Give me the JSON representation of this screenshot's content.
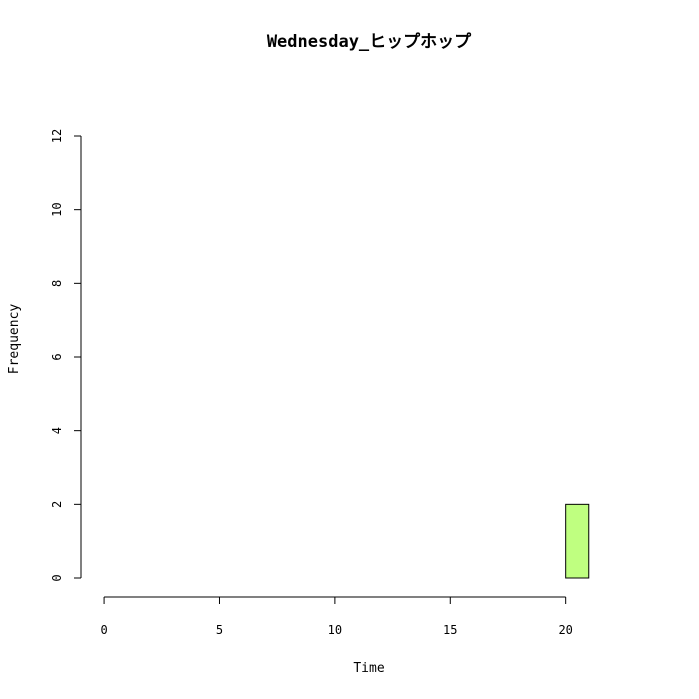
{
  "chart_data": {
    "type": "bar",
    "title": "Wednesday_ヒップホップ",
    "xlabel": "Time",
    "ylabel": "Frequency",
    "x_ticks": [
      "0",
      "5",
      "10",
      "15",
      "20"
    ],
    "y_ticks": [
      "0",
      "2",
      "4",
      "6",
      "8",
      "10",
      "12"
    ],
    "xlim": [
      -1,
      24
    ],
    "ylim": [
      0,
      12
    ],
    "bar_color": "#bfff80",
    "bins": [
      {
        "start": 0,
        "end": 1,
        "count": 0
      },
      {
        "start": 1,
        "end": 2,
        "count": 0
      },
      {
        "start": 2,
        "end": 3,
        "count": 0
      },
      {
        "start": 3,
        "end": 4,
        "count": 0
      },
      {
        "start": 4,
        "end": 5,
        "count": 0
      },
      {
        "start": 5,
        "end": 6,
        "count": 0
      },
      {
        "start": 6,
        "end": 7,
        "count": 0
      },
      {
        "start": 7,
        "end": 8,
        "count": 0
      },
      {
        "start": 8,
        "end": 9,
        "count": 0
      },
      {
        "start": 9,
        "end": 10,
        "count": 0
      },
      {
        "start": 10,
        "end": 11,
        "count": 0
      },
      {
        "start": 11,
        "end": 12,
        "count": 0
      },
      {
        "start": 12,
        "end": 13,
        "count": 0
      },
      {
        "start": 13,
        "end": 14,
        "count": 0
      },
      {
        "start": 14,
        "end": 15,
        "count": 0
      },
      {
        "start": 15,
        "end": 16,
        "count": 0
      },
      {
        "start": 16,
        "end": 17,
        "count": 0
      },
      {
        "start": 17,
        "end": 18,
        "count": 0
      },
      {
        "start": 18,
        "end": 19,
        "count": 0
      },
      {
        "start": 19,
        "end": 20,
        "count": 0
      },
      {
        "start": 20,
        "end": 21,
        "count": 2
      },
      {
        "start": 21,
        "end": 22,
        "count": 0
      },
      {
        "start": 22,
        "end": 23,
        "count": 0
      },
      {
        "start": 23,
        "end": 24,
        "count": 0
      }
    ]
  }
}
